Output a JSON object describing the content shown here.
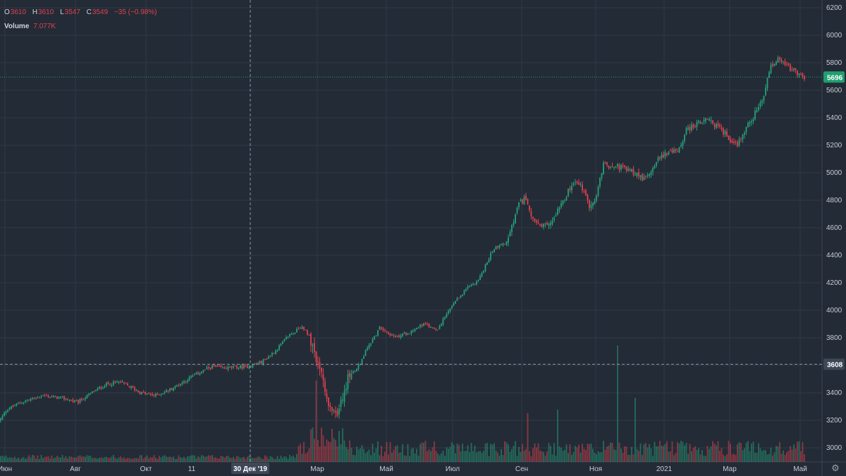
{
  "legend": {
    "open_key": "O",
    "open": "3610",
    "high_key": "H",
    "high": "3610",
    "low_key": "L",
    "low": "3547",
    "close_key": "C",
    "close": "3549",
    "change": "−35 (−0.98%)",
    "volume_label": "Volume",
    "volume_value": "7.077K"
  },
  "colors": {
    "background": "#232b36",
    "grid": "#2f3a47",
    "up": "#26a17a",
    "down": "#e0414f",
    "axis_text": "#c9ccd3",
    "last_price_bg": "#1f9f6f",
    "crosshair_bg": "#3d4756"
  },
  "last_price_label": "5696",
  "crosshair_price_label": "3608",
  "crosshair_date_label": "30 Дек '19",
  "settings_icon": "gear-icon",
  "chart_data": {
    "type": "candlestick",
    "title": "",
    "y_axis": {
      "ticks": [
        3000,
        3200,
        3400,
        3600,
        3800,
        4000,
        4200,
        4400,
        4600,
        4800,
        5000,
        5200,
        5400,
        5600,
        5800,
        6000,
        6200
      ],
      "range": [
        2890,
        6260
      ]
    },
    "x_axis": {
      "tick_labels": [
        "Июн",
        "Авг",
        "Окт",
        "11",
        "Мар",
        "Май",
        "Июл",
        "Сен",
        "Ноя",
        "2021",
        "Мар",
        "Май"
      ]
    },
    "grid": true,
    "last_price": 5696,
    "crosshair_price": 3608,
    "close_trend": [
      [
        0,
        3200
      ],
      [
        10,
        3280
      ],
      [
        30,
        3330
      ],
      [
        60,
        3380
      ],
      [
        90,
        3360
      ],
      [
        110,
        3330
      ],
      [
        130,
        3400
      ],
      [
        150,
        3460
      ],
      [
        170,
        3480
      ],
      [
        200,
        3400
      ],
      [
        220,
        3380
      ],
      [
        240,
        3420
      ],
      [
        260,
        3480
      ],
      [
        280,
        3540
      ],
      [
        300,
        3590
      ],
      [
        320,
        3580
      ],
      [
        350,
        3590
      ],
      [
        370,
        3620
      ],
      [
        390,
        3700
      ],
      [
        410,
        3820
      ],
      [
        430,
        3880
      ],
      [
        440,
        3800
      ],
      [
        448,
        3650
      ],
      [
        456,
        3560
      ],
      [
        464,
        3300
      ],
      [
        472,
        3230
      ],
      [
        480,
        3280
      ],
      [
        488,
        3420
      ],
      [
        496,
        3540
      ],
      [
        504,
        3560
      ],
      [
        512,
        3620
      ],
      [
        520,
        3720
      ],
      [
        540,
        3880
      ],
      [
        560,
        3800
      ],
      [
        580,
        3840
      ],
      [
        600,
        3900
      ],
      [
        620,
        3860
      ],
      [
        640,
        4020
      ],
      [
        660,
        4150
      ],
      [
        680,
        4230
      ],
      [
        700,
        4450
      ],
      [
        720,
        4500
      ],
      [
        735,
        4760
      ],
      [
        745,
        4820
      ],
      [
        755,
        4680
      ],
      [
        765,
        4600
      ],
      [
        780,
        4620
      ],
      [
        795,
        4780
      ],
      [
        815,
        4930
      ],
      [
        825,
        4900
      ],
      [
        835,
        4760
      ],
      [
        845,
        4800
      ],
      [
        855,
        5050
      ],
      [
        870,
        5060
      ],
      [
        885,
        5030
      ],
      [
        900,
        5000
      ],
      [
        915,
        4950
      ],
      [
        930,
        5080
      ],
      [
        945,
        5150
      ],
      [
        960,
        5150
      ],
      [
        975,
        5320
      ],
      [
        990,
        5360
      ],
      [
        1005,
        5380
      ],
      [
        1020,
        5330
      ],
      [
        1035,
        5250
      ],
      [
        1045,
        5200
      ],
      [
        1055,
        5300
      ],
      [
        1070,
        5420
      ],
      [
        1082,
        5520
      ],
      [
        1092,
        5760
      ],
      [
        1102,
        5820
      ],
      [
        1115,
        5780
      ],
      [
        1125,
        5740
      ],
      [
        1135,
        5700
      ],
      [
        1142,
        5696
      ]
    ],
    "volume_spikes": [
      {
        "x": 448,
        "ratio": 0.7
      },
      {
        "x": 875,
        "ratio": 1.0
      },
      {
        "x": 900,
        "ratio": 0.55
      },
      {
        "x": 790,
        "ratio": 0.45
      },
      {
        "x": 748,
        "ratio": 0.42
      }
    ]
  }
}
